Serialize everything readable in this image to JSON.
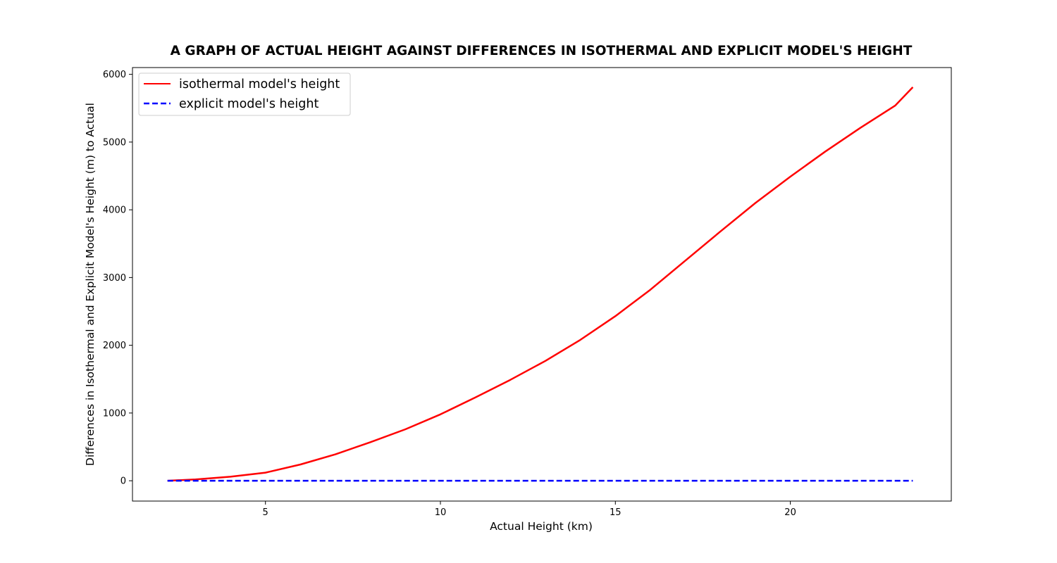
{
  "chart_data": {
    "type": "line",
    "title": "A GRAPH OF ACTUAL HEIGHT AGAINST DIFFERENCES IN ISOTHERMAL AND EXPLICIT MODEL'S HEIGHT",
    "xlabel": "Actual Height (km)",
    "ylabel": "Differences in Isothermal and Explicit Model's Height (m) to Actual",
    "xlim": [
      1.2,
      24.6
    ],
    "ylim": [
      -300,
      6100
    ],
    "xticks": [
      5,
      10,
      15,
      20
    ],
    "yticks": [
      0,
      1000,
      2000,
      3000,
      4000,
      5000,
      6000
    ],
    "grid": false,
    "legend_position": "top-left",
    "series": [
      {
        "name": "isothermal model's height",
        "color": "#ff0000",
        "style": "solid",
        "x": [
          2.2,
          3,
          4,
          5,
          6,
          7,
          8,
          9,
          10,
          11,
          12,
          13,
          14,
          15,
          16,
          17,
          18,
          19,
          20,
          21,
          22,
          23,
          23.5
        ],
        "y": [
          0,
          20,
          60,
          120,
          240,
          390,
          570,
          760,
          980,
          1230,
          1490,
          1770,
          2080,
          2430,
          2820,
          3250,
          3680,
          4100,
          4490,
          4860,
          5210,
          5540,
          5810
        ]
      },
      {
        "name": "explicit model's height",
        "color": "#0000ff",
        "style": "dashed",
        "x": [
          2.2,
          5,
          10,
          15,
          20,
          23.5
        ],
        "y": [
          0,
          0,
          0,
          0,
          0,
          0
        ]
      }
    ]
  }
}
